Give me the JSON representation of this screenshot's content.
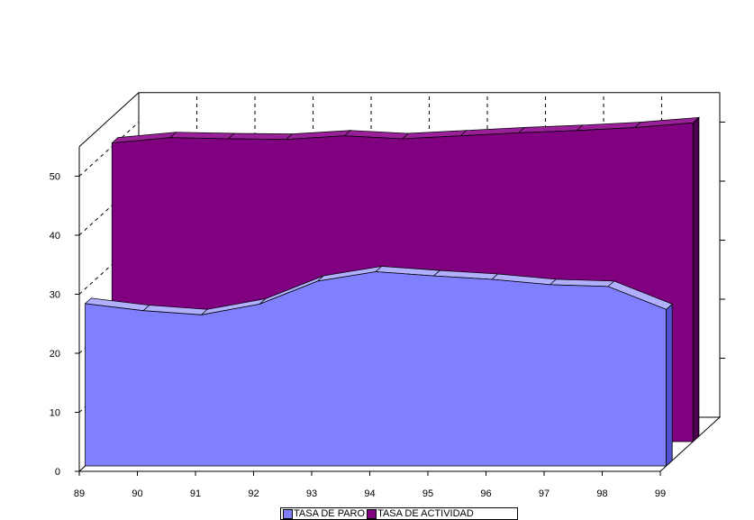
{
  "chart_data": {
    "type": "area",
    "x": [
      "89",
      "90",
      "91",
      "92",
      "93",
      "94",
      "95",
      "96",
      "97",
      "98",
      "99"
    ],
    "y_ticks": [
      "0",
      "10",
      "20",
      "30",
      "40",
      "50"
    ],
    "ylim": [
      0,
      55
    ],
    "grid": true,
    "legend_position": "bottom",
    "series": [
      {
        "name": "TASA DE PARO",
        "color": "#8080ff",
        "values": [
          27.5,
          26.3,
          25.6,
          27.4,
          31.3,
          32.9,
          32.2,
          31.6,
          30.7,
          30.4,
          26.5
        ]
      },
      {
        "name": "TASA DE ACTIVIDAD",
        "color": "#800080",
        "values": [
          50.6,
          51.5,
          51.3,
          51.2,
          51.8,
          51.3,
          51.8,
          52.3,
          52.7,
          53.2,
          54.0
        ]
      }
    ]
  }
}
